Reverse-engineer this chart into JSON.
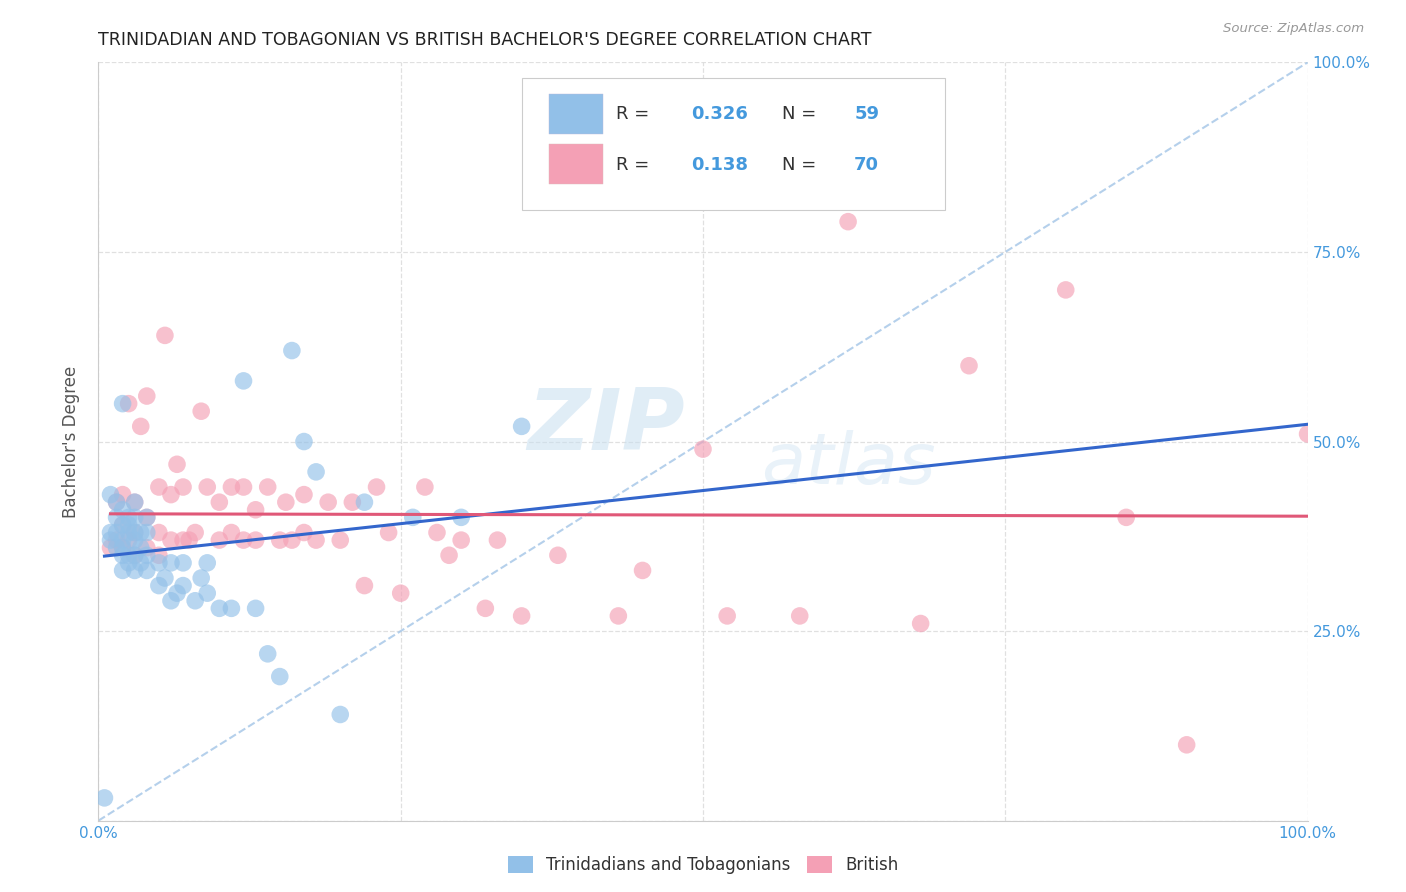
{
  "title": "TRINIDADIAN AND TOBAGONIAN VS BRITISH BACHELOR'S DEGREE CORRELATION CHART",
  "source": "Source: ZipAtlas.com",
  "ylabel": "Bachelor's Degree",
  "watermark_zip": "ZIP",
  "watermark_atlas": "atlas",
  "xlim": [
    0,
    1.0
  ],
  "ylim": [
    0,
    1.0
  ],
  "xticks": [
    0.0,
    0.25,
    0.5,
    0.75,
    1.0
  ],
  "yticks": [
    0.0,
    0.25,
    0.5,
    0.75,
    1.0
  ],
  "xticklabels": [
    "0.0%",
    "",
    "",
    "",
    "100.0%"
  ],
  "right_yticklabels": [
    "",
    "25.0%",
    "50.0%",
    "75.0%",
    "100.0%"
  ],
  "legend_labels": [
    "Trinidadians and Tobagonians",
    "British"
  ],
  "r_blue": 0.326,
  "n_blue": 59,
  "r_pink": 0.138,
  "n_pink": 70,
  "color_blue": "#92c0e8",
  "color_pink": "#f4a0b5",
  "line_blue": "#3366cc",
  "line_pink": "#e05878",
  "diagonal_color": "#a8c8e8",
  "title_color": "#222222",
  "axis_label_color": "#555555",
  "tick_color": "#4499dd",
  "grid_color": "#dddddd",
  "background_color": "#ffffff",
  "blue_x": [
    0.005,
    0.01,
    0.01,
    0.01,
    0.015,
    0.015,
    0.015,
    0.015,
    0.02,
    0.02,
    0.02,
    0.02,
    0.02,
    0.02,
    0.02,
    0.025,
    0.025,
    0.025,
    0.025,
    0.025,
    0.03,
    0.03,
    0.03,
    0.03,
    0.03,
    0.03,
    0.035,
    0.035,
    0.035,
    0.04,
    0.04,
    0.04,
    0.04,
    0.05,
    0.05,
    0.055,
    0.06,
    0.06,
    0.065,
    0.07,
    0.07,
    0.08,
    0.085,
    0.09,
    0.09,
    0.1,
    0.11,
    0.12,
    0.13,
    0.14,
    0.15,
    0.16,
    0.17,
    0.18,
    0.2,
    0.22,
    0.26,
    0.3,
    0.35
  ],
  "blue_y": [
    0.03,
    0.37,
    0.38,
    0.43,
    0.36,
    0.38,
    0.4,
    0.42,
    0.33,
    0.35,
    0.36,
    0.37,
    0.39,
    0.41,
    0.55,
    0.34,
    0.35,
    0.38,
    0.39,
    0.4,
    0.33,
    0.35,
    0.37,
    0.38,
    0.4,
    0.42,
    0.34,
    0.36,
    0.38,
    0.33,
    0.35,
    0.38,
    0.4,
    0.31,
    0.34,
    0.32,
    0.29,
    0.34,
    0.3,
    0.31,
    0.34,
    0.29,
    0.32,
    0.3,
    0.34,
    0.28,
    0.28,
    0.58,
    0.28,
    0.22,
    0.19,
    0.62,
    0.5,
    0.46,
    0.14,
    0.42,
    0.4,
    0.4,
    0.52
  ],
  "pink_x": [
    0.01,
    0.015,
    0.015,
    0.02,
    0.02,
    0.02,
    0.025,
    0.025,
    0.03,
    0.03,
    0.03,
    0.035,
    0.04,
    0.04,
    0.04,
    0.05,
    0.05,
    0.05,
    0.055,
    0.06,
    0.06,
    0.065,
    0.07,
    0.07,
    0.075,
    0.08,
    0.085,
    0.09,
    0.1,
    0.1,
    0.11,
    0.11,
    0.12,
    0.12,
    0.13,
    0.13,
    0.14,
    0.15,
    0.155,
    0.16,
    0.17,
    0.17,
    0.18,
    0.19,
    0.2,
    0.21,
    0.22,
    0.23,
    0.24,
    0.25,
    0.27,
    0.28,
    0.29,
    0.3,
    0.32,
    0.33,
    0.35,
    0.38,
    0.43,
    0.45,
    0.5,
    0.52,
    0.58,
    0.62,
    0.68,
    0.72,
    0.8,
    0.85,
    0.9,
    1.0
  ],
  "pink_y": [
    0.36,
    0.37,
    0.42,
    0.36,
    0.39,
    0.43,
    0.37,
    0.55,
    0.35,
    0.38,
    0.42,
    0.52,
    0.36,
    0.4,
    0.56,
    0.35,
    0.38,
    0.44,
    0.64,
    0.37,
    0.43,
    0.47,
    0.37,
    0.44,
    0.37,
    0.38,
    0.54,
    0.44,
    0.37,
    0.42,
    0.38,
    0.44,
    0.37,
    0.44,
    0.37,
    0.41,
    0.44,
    0.37,
    0.42,
    0.37,
    0.38,
    0.43,
    0.37,
    0.42,
    0.37,
    0.42,
    0.31,
    0.44,
    0.38,
    0.3,
    0.44,
    0.38,
    0.35,
    0.37,
    0.28,
    0.37,
    0.27,
    0.35,
    0.27,
    0.33,
    0.49,
    0.27,
    0.27,
    0.79,
    0.26,
    0.6,
    0.7,
    0.4,
    0.1,
    0.51
  ]
}
